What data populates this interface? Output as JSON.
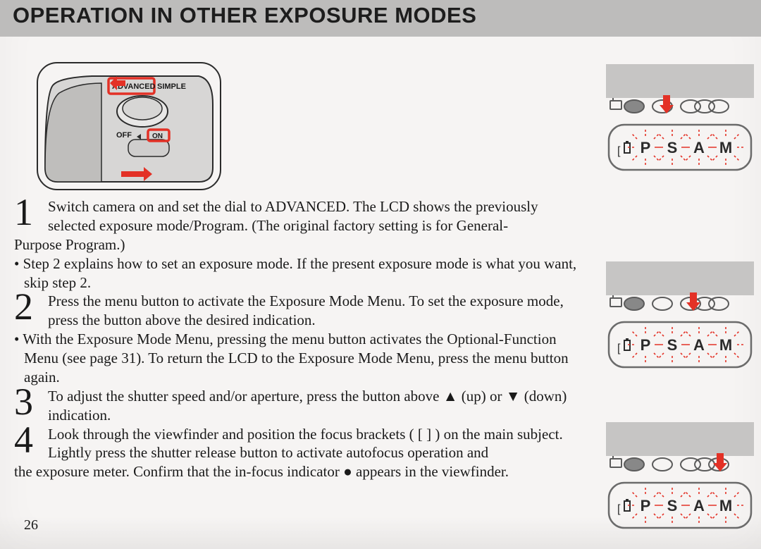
{
  "header": {
    "title": "OPERATION IN OTHER EXPOSURE MODES"
  },
  "illustration": {
    "labels": {
      "advanced": "ADVANCED",
      "simple": "SIMPLE",
      "off": "OFF",
      "on": "ON"
    },
    "highlight_color": "#e33126",
    "outline_color": "#2b2b2b",
    "fill_gray": "#d7d6d5",
    "arrow_color": "#e33126"
  },
  "lcd": {
    "indicators": [
      "P",
      "S",
      "A",
      "M"
    ],
    "dashed_color": "#e33126",
    "outline_color": "#6b6b6b",
    "icon_color": "#5b5b5b",
    "panels": [
      {
        "top_gray": 0,
        "arrow_index": 1,
        "blink": [
          0,
          1,
          2,
          3
        ]
      },
      {
        "top_gray": 284,
        "arrow_index": 2,
        "blink": [
          0,
          1,
          2,
          3
        ]
      },
      {
        "top_gray": 510,
        "arrow_index": 3,
        "blink": [
          0,
          1,
          2,
          3
        ]
      }
    ]
  },
  "steps": [
    {
      "n": "1",
      "t": "Switch camera on and set the dial to ADVANCED. The LCD shows the previously selected exposure mode/Program. (The original factory setting is for General-"
    },
    {
      "cont": "Purpose Program.)"
    },
    {
      "bullet": "• Step 2 explains how to set an exposure mode. If the present exposure mode is what you want, skip step 2."
    },
    {
      "n": "2",
      "t": "Press the menu button to activate the Exposure Mode Menu. To set the exposure mode, press the button above the desired indication."
    },
    {
      "bullet": "• With the Exposure Mode Menu, pressing the menu button activates the Optional-Function Menu (see page 31). To return the LCD to the Exposure Mode Menu, press the menu button again."
    },
    {
      "n": "3",
      "t": "To adjust the shutter speed and/or aperture, press the button above ▲ (up) or ▼ (down) indication."
    },
    {
      "n": "4",
      "t": "Look through the viewfinder and position the focus brackets ( [   ] ) on the main subject. Lightly press the shutter release button to activate autofocus operation and"
    },
    {
      "cont": "the exposure meter. Confirm that the in-focus indicator ● appears in the viewfinder."
    }
  ],
  "pageNumber": "26"
}
